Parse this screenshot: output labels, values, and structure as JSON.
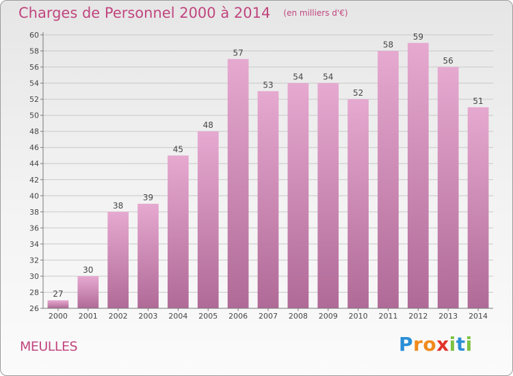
{
  "header": {
    "title": "Charges de Personnel 2000 à 2014",
    "unit": "(en milliers d'€)"
  },
  "footer": {
    "commune": "MEULLES",
    "logo_letters": [
      "P",
      "r",
      "o",
      "x",
      "i",
      "t",
      "i"
    ],
    "logo_colors": [
      "#2b8fd6",
      "#f08a1c",
      "#f08a1c",
      "#e2332a",
      "#7cc242",
      "#2b8fd6",
      "#7cc242"
    ]
  },
  "colors": {
    "bar_top": "#e6a9d0",
    "bar_bottom": "#b06a97",
    "accent": "#c0457e",
    "grid": "#c8c8c8"
  },
  "chart_data": {
    "type": "bar",
    "title": "Charges de Personnel 2000 à 2014",
    "subtitle": "(en milliers d'€)",
    "categories": [
      "2000",
      "2001",
      "2002",
      "2003",
      "2004",
      "2005",
      "2006",
      "2007",
      "2008",
      "2009",
      "2010",
      "2011",
      "2012",
      "2013",
      "2014"
    ],
    "values": [
      27,
      30,
      38,
      39,
      45,
      48,
      57,
      53,
      54,
      54,
      52,
      58,
      59,
      56,
      51
    ],
    "ylim": [
      26,
      60
    ],
    "yticks": [
      26,
      28,
      30,
      32,
      34,
      36,
      38,
      40,
      42,
      44,
      46,
      48,
      50,
      52,
      54,
      56,
      58,
      60
    ],
    "grid": true,
    "xlabel": "",
    "ylabel": ""
  }
}
